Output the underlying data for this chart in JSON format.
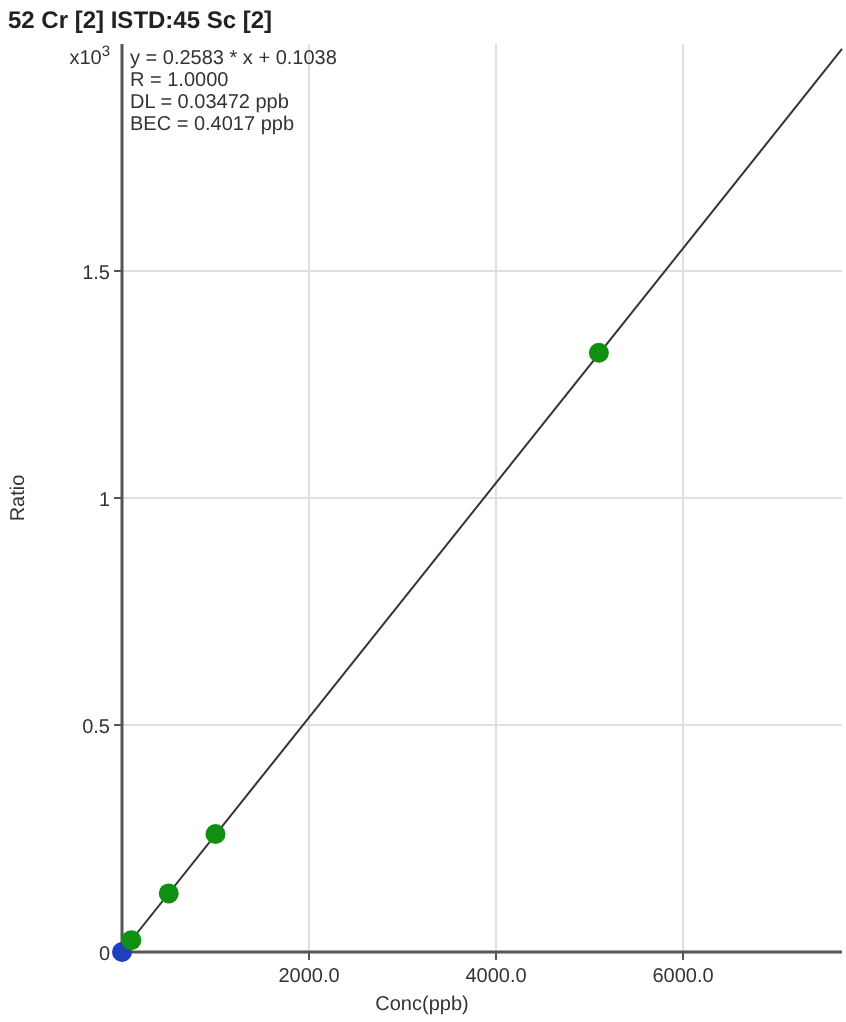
{
  "chart_data": {
    "type": "scatter",
    "title": "52 Cr [2] ISTD:45 Sc [2]",
    "xlabel": "Conc(ppb)",
    "ylabel": "Ratio",
    "annotations": [
      "x10$^{3}$",
      "y = 0.2583 * x  + 0.1038",
      "R =  1.0000",
      "DL = 0.03472 ppb",
      "BEC = 0.4017 ppb"
    ],
    "xlim": [
      0,
      7700
    ],
    "ylim": [
      0,
      2.0
    ],
    "xticks": [
      {
        "value": 2000,
        "label": "2000.0"
      },
      {
        "value": 4000,
        "label": "4000.0"
      },
      {
        "value": 6000,
        "label": "6000.0"
      }
    ],
    "yticks": [
      0,
      0.5,
      1,
      1.5
    ],
    "grid": true,
    "series": [
      {
        "type": "line",
        "color": "#333333",
        "x": [
          0,
          7700
        ],
        "values": [
          0,
          1.989
        ],
        "line_style": "solid",
        "marker": "none"
      },
      {
        "marker": "circle",
        "colors": [
          "#1f3fbf",
          "#109010",
          "#109010",
          "#109010",
          "#109010"
        ],
        "x": [
          0,
          100,
          500,
          1000,
          5100
        ],
        "values": [
          0,
          0.026,
          0.129,
          0.26,
          1.32
        ]
      }
    ]
  }
}
